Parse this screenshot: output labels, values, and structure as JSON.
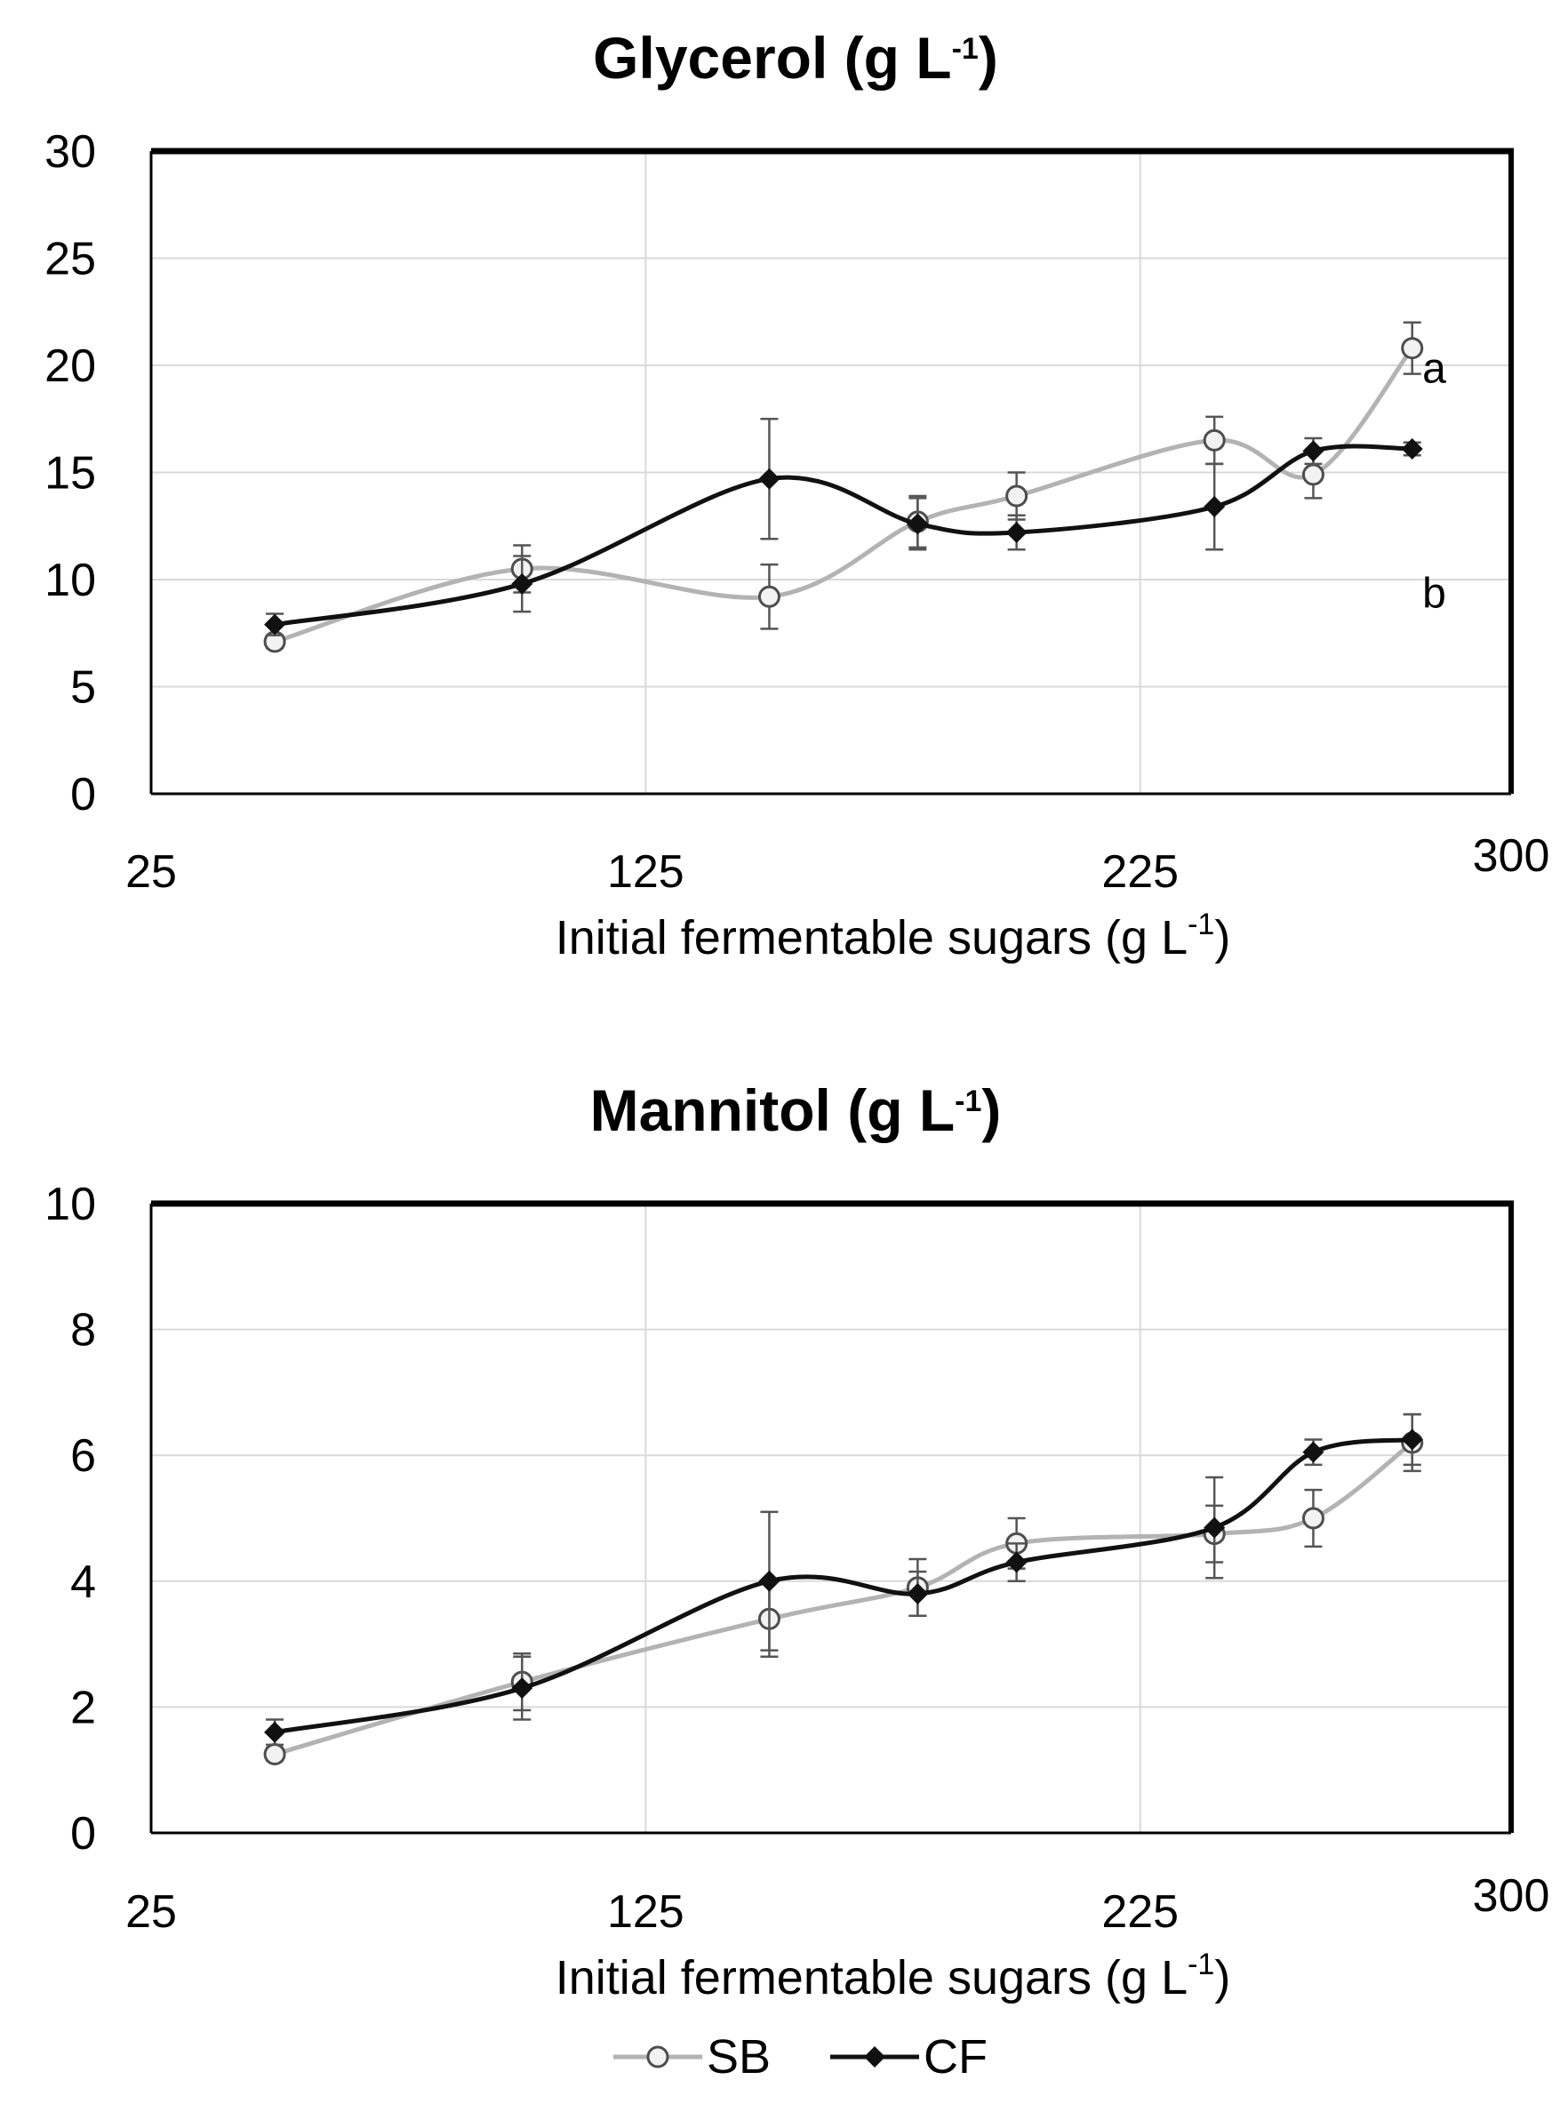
{
  "legend": {
    "items": [
      {
        "name": "SB",
        "color": "#b3b3b3",
        "marker": "open-circle"
      },
      {
        "name": "CF",
        "color": "#111111",
        "marker": "filled-diamond"
      }
    ]
  },
  "chart_data": [
    {
      "type": "line",
      "title": "Glycerol (g L",
      "title_unit_exp": "-1",
      "title_tail": ")",
      "xlabel": "Initial fermentable sugars (g L",
      "xlabel_exp": "-1",
      "xlabel_tail": ")",
      "ylabel": "",
      "xlim": [
        25,
        300
      ],
      "ylim": [
        0,
        30
      ],
      "xticks": [
        25,
        125,
        225,
        300
      ],
      "yticks": [
        0,
        5,
        10,
        15,
        20,
        25,
        30
      ],
      "grid": true,
      "series": [
        {
          "name": "SB",
          "x": [
            50,
            100,
            150,
            180,
            200,
            240,
            260,
            280
          ],
          "y": [
            7.1,
            10.5,
            9.2,
            12.7,
            13.9,
            16.5,
            14.9,
            20.8
          ],
          "err": [
            0.3,
            1.1,
            1.5,
            1.2,
            1.1,
            1.1,
            1.1,
            1.2
          ]
        },
        {
          "name": "CF",
          "x": [
            50,
            100,
            150,
            180,
            200,
            240,
            260,
            280
          ],
          "y": [
            7.9,
            9.8,
            14.7,
            12.6,
            12.2,
            13.4,
            16.0,
            16.1
          ],
          "err": [
            0.5,
            1.3,
            2.8,
            1.2,
            0.8,
            2.0,
            0.6,
            0.3
          ]
        }
      ],
      "annotations": [
        {
          "text": "a",
          "x": 283,
          "y": 19.2
        },
        {
          "text": "b",
          "x": 283,
          "y": 8.7
        }
      ]
    },
    {
      "type": "line",
      "title": "Mannitol (g L",
      "title_unit_exp": "-1",
      "title_tail": ")",
      "xlabel": "Initial fermentable sugars (g L",
      "xlabel_exp": "-1",
      "xlabel_tail": ")",
      "ylabel": "",
      "xlim": [
        25,
        300
      ],
      "ylim": [
        0,
        10
      ],
      "xticks": [
        25,
        125,
        225,
        300
      ],
      "yticks": [
        0,
        2,
        4,
        6,
        8,
        10
      ],
      "grid": true,
      "series": [
        {
          "name": "SB",
          "x": [
            50,
            100,
            150,
            180,
            200,
            240,
            260,
            280
          ],
          "y": [
            1.25,
            2.4,
            3.4,
            3.9,
            4.6,
            4.75,
            5.0,
            6.2
          ],
          "err": [
            0.1,
            0.45,
            0.6,
            0.45,
            0.4,
            0.45,
            0.45,
            0.45
          ]
        },
        {
          "name": "CF",
          "x": [
            50,
            100,
            150,
            180,
            200,
            240,
            260,
            280
          ],
          "y": [
            1.6,
            2.3,
            4.0,
            3.8,
            4.3,
            4.85,
            6.05,
            6.25
          ],
          "err": [
            0.2,
            0.5,
            1.1,
            0.35,
            0.3,
            0.8,
            0.2,
            0.4
          ]
        }
      ],
      "annotations": []
    }
  ]
}
